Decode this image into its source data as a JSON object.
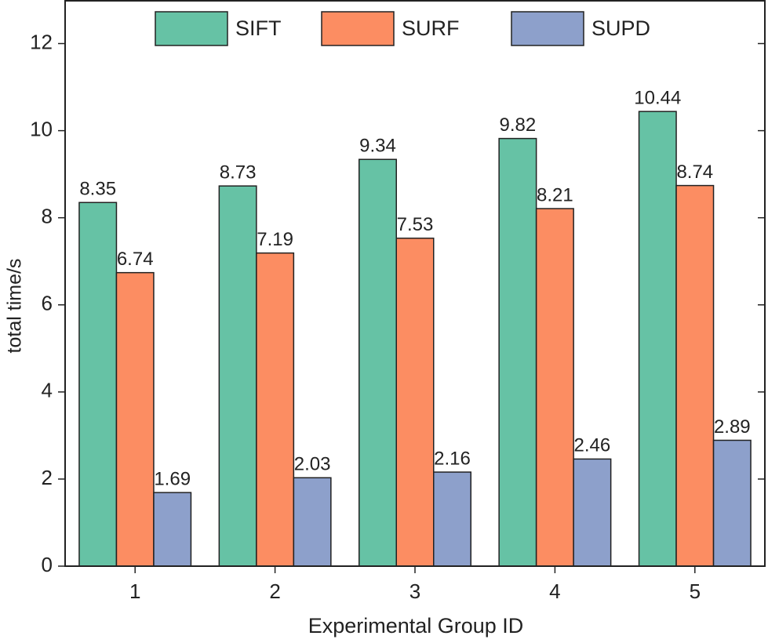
{
  "chart_data": {
    "type": "bar",
    "x_label": "Experimental Group ID",
    "y_label": "total time/s",
    "categories": [
      "1",
      "2",
      "3",
      "4",
      "5"
    ],
    "series": [
      {
        "name": "SIFT",
        "color": "#66c2a5",
        "values": [
          8.35,
          8.73,
          9.34,
          9.82,
          10.44
        ]
      },
      {
        "name": "SURF",
        "color": "#fc8d62",
        "values": [
          6.74,
          7.19,
          7.53,
          8.21,
          8.74
        ]
      },
      {
        "name": "SUPD",
        "color": "#8da0cb",
        "values": [
          1.69,
          2.03,
          2.16,
          2.46,
          2.89
        ]
      }
    ],
    "ylim": [
      0,
      13
    ],
    "yticks": [
      0,
      2,
      4,
      6,
      8,
      10,
      12
    ],
    "legend": "top"
  }
}
